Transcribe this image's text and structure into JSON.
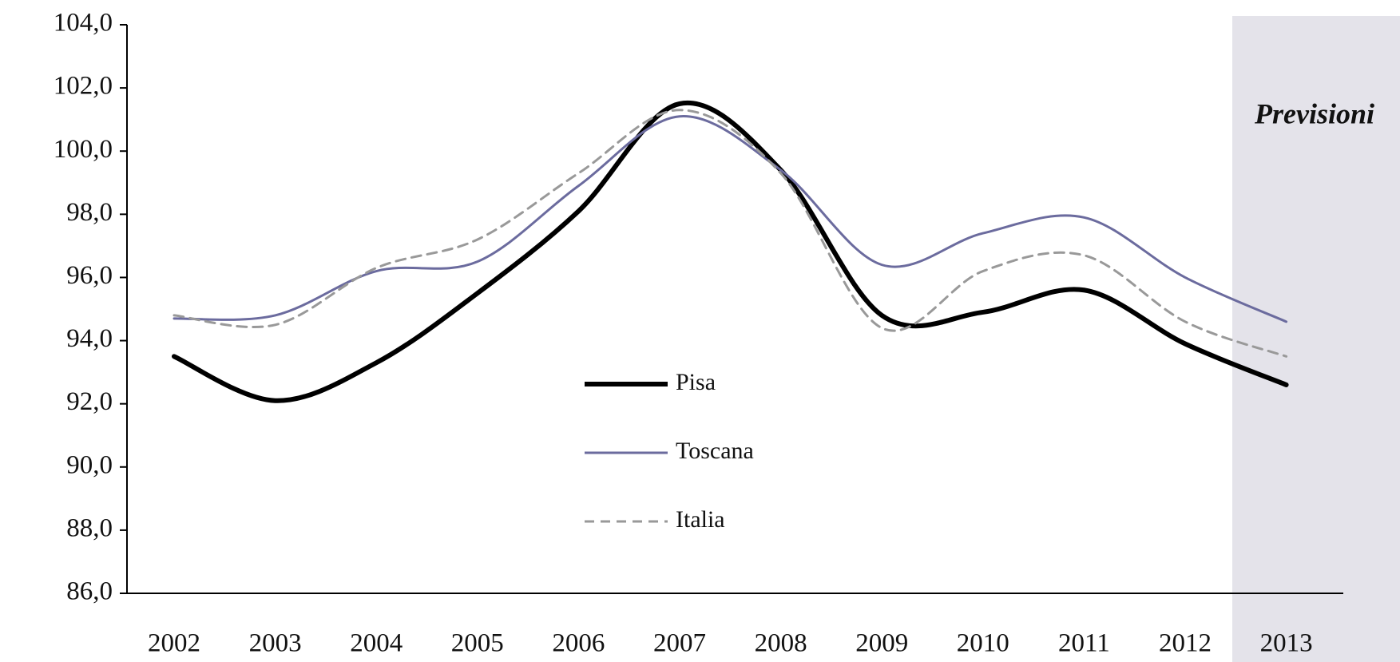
{
  "chart_data": {
    "type": "line",
    "categories": [
      "2002",
      "2003",
      "2004",
      "2005",
      "2006",
      "2007",
      "2008",
      "2009",
      "2010",
      "2011",
      "2012",
      "2013"
    ],
    "series": [
      {
        "name": "Pisa",
        "color": "#000000",
        "values": [
          93.5,
          92.1,
          93.3,
          95.5,
          98.1,
          101.5,
          99.4,
          94.8,
          94.9,
          95.6,
          93.9,
          92.6
        ]
      },
      {
        "name": "Toscana",
        "color": "#6b6b9e",
        "values": [
          94.7,
          94.8,
          96.2,
          96.5,
          98.9,
          101.1,
          99.4,
          96.4,
          97.4,
          97.9,
          96.0,
          94.6
        ]
      },
      {
        "name": "Italia",
        "color": "#999999",
        "values": [
          94.8,
          94.5,
          96.3,
          97.2,
          99.3,
          101.3,
          99.3,
          94.4,
          96.2,
          96.7,
          94.6,
          93.5
        ]
      }
    ],
    "ylim": [
      86,
      104
    ],
    "yticks": [
      {
        "value": 86,
        "label": "86,0"
      },
      {
        "value": 88,
        "label": "88,0"
      },
      {
        "value": 90,
        "label": "90,0"
      },
      {
        "value": 92,
        "label": "92,0"
      },
      {
        "value": 94,
        "label": "94,0"
      },
      {
        "value": 96,
        "label": "96,0"
      },
      {
        "value": 98,
        "label": "98,0"
      },
      {
        "value": 100,
        "label": "100,0"
      },
      {
        "value": 102,
        "label": "102,0"
      },
      {
        "value": 104,
        "label": "104,0"
      }
    ],
    "annotation": "Previsioni",
    "grid": false
  }
}
